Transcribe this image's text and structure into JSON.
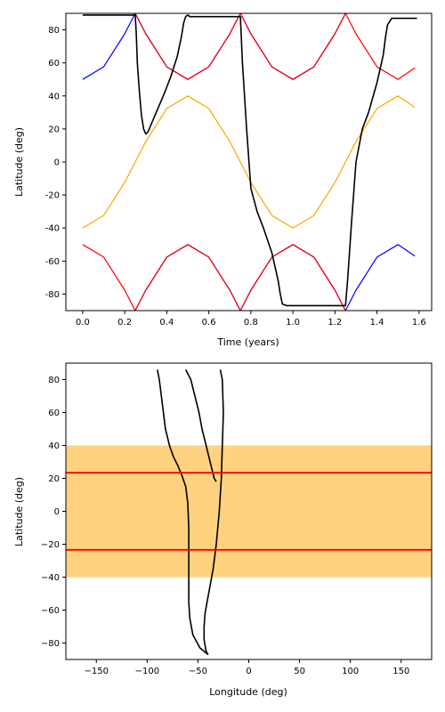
{
  "colors": {
    "lat_max": "#0000ff",
    "lat_min": "#ff0000",
    "subsolar": "#ffa500",
    "track": "#000000",
    "tropics": "#ff0000",
    "band": "#ffd27f"
  },
  "chart_data": [
    {
      "type": "line",
      "xlabel": "Time (years)",
      "ylabel": "Latitude (deg)",
      "xlim": [
        -0.08,
        1.66
      ],
      "ylim": [
        -90,
        90
      ],
      "xticks": [
        "0.0",
        "0.2",
        "0.4",
        "0.6",
        "0.8",
        "1.0",
        "1.2",
        "1.4",
        "1.6"
      ],
      "yticks": [
        "-80",
        "-60",
        "-40",
        "-20",
        "0",
        "20",
        "40",
        "60",
        "80"
      ],
      "grid": false,
      "legend": "none",
      "series": [
        {
          "color": "#ffa500",
          "x": [
            0,
            0.1,
            0.2,
            0.3,
            0.4,
            0.5,
            0.6,
            0.7,
            0.8,
            0.9,
            1.0,
            1.1,
            1.2,
            1.3,
            1.4,
            1.5,
            1.58
          ],
          "y": [
            -40,
            -32.4,
            -12.4,
            12.4,
            32.4,
            40,
            32.4,
            12.4,
            -12.4,
            -32.4,
            -40,
            -32.4,
            -12.4,
            12.4,
            32.4,
            40,
            33
          ]
        },
        {
          "color": "#0000ff",
          "x": [
            0,
            0.1,
            0.2,
            0.25,
            0.3,
            0.4,
            0.5,
            0.6,
            0.7,
            0.75,
            0.8,
            0.9,
            1.0,
            1.1,
            1.2,
            1.25
          ],
          "y": [
            50,
            57.6,
            77.6,
            90,
            77.6,
            57.6,
            50,
            57.6,
            77.6,
            90,
            77.6,
            57.6,
            50,
            57.6,
            77.6,
            90
          ]
        },
        {
          "color": "#0000ff",
          "x": [
            0.25,
            0.3,
            0.4,
            0.5,
            0.6,
            0.7,
            0.75,
            0.8,
            0.9,
            1.0,
            1.1,
            1.2,
            1.25,
            1.3,
            1.4,
            1.5,
            1.58
          ],
          "y": [
            -90,
            -77.6,
            -57.6,
            -50,
            -57.6,
            -77.6,
            -90,
            -77.6,
            -57.6,
            -50,
            -57.6,
            -77.6,
            -90,
            -77.6,
            -57.6,
            -50,
            -57
          ]
        },
        {
          "color": "#ff0000",
          "x": [
            0.25,
            0.3,
            0.4,
            0.5,
            0.6,
            0.7,
            0.75,
            0.8,
            0.9,
            1.0,
            1.1,
            1.2,
            1.25,
            1.3,
            1.4,
            1.5,
            1.58
          ],
          "y": [
            90,
            77.6,
            57.6,
            50,
            57.6,
            77.6,
            90,
            77.6,
            57.6,
            50,
            57.6,
            77.6,
            90,
            77.6,
            57.6,
            50,
            57
          ]
        },
        {
          "color": "#ff0000",
          "x": [
            0,
            0.1,
            0.2,
            0.25,
            0.3,
            0.4,
            0.5,
            0.6,
            0.7,
            0.75,
            0.8,
            0.9,
            1.0,
            1.1,
            1.2,
            1.25
          ],
          "y": [
            -50,
            -57.6,
            -77.6,
            -90,
            -77.6,
            -57.6,
            -50,
            -57.6,
            -77.6,
            -90,
            -77.6,
            -57.6,
            -50,
            -57.6,
            -77.6,
            -90
          ]
        },
        {
          "color": "#000000",
          "x": [
            0,
            0.25,
            0.255,
            0.26,
            0.27,
            0.28,
            0.29,
            0.3,
            0.31,
            0.33,
            0.36,
            0.39,
            0.42,
            0.45,
            0.47,
            0.48,
            0.49,
            0.5,
            0.51,
            0.75,
            0.76,
            0.78,
            0.8,
            0.83,
            0.86,
            0.9,
            0.93,
            0.94,
            0.95,
            0.97,
            1.0,
            1.25,
            1.26,
            1.28,
            1.3,
            1.33,
            1.36,
            1.4,
            1.43,
            1.44,
            1.45,
            1.47,
            1.5,
            1.59
          ],
          "y": [
            89,
            89,
            78,
            60,
            42,
            28,
            20,
            17,
            18,
            24,
            33,
            42,
            52,
            64,
            76,
            84,
            88,
            89,
            88,
            88,
            60,
            20,
            -16,
            -30,
            -40,
            -55,
            -72,
            -80,
            -86,
            -87,
            -87,
            -87,
            -72,
            -35,
            0,
            20,
            30,
            48,
            65,
            75,
            83,
            87,
            87,
            87
          ]
        }
      ]
    },
    {
      "type": "line",
      "xlabel": "Longitude (deg)",
      "ylabel": "Latitude (deg)",
      "xlim": [
        -180,
        180
      ],
      "ylim": [
        -90,
        90
      ],
      "xticks": [
        "−150",
        "−100",
        "−50",
        "0",
        "50",
        "100",
        "150"
      ],
      "yticks": [
        "−80",
        "−60",
        "−40",
        "−20",
        "0",
        "20",
        "40",
        "60",
        "80"
      ],
      "grid": false,
      "legend": "none",
      "band": {
        "from": -40,
        "to": 40
      },
      "hlines": [
        23.4,
        -23.4
      ],
      "series": [
        {
          "color": "#000000",
          "x": [
            -28,
            -26,
            -25,
            -26,
            -27,
            -29,
            -32,
            -35,
            -38,
            -41,
            -43,
            -44,
            -44,
            -42,
            -40
          ],
          "y": [
            86,
            80,
            60,
            40,
            20,
            0,
            -20,
            -35,
            -45,
            -55,
            -62,
            -70,
            -78,
            -85,
            -87
          ]
        },
        {
          "color": "#000000",
          "x": [
            -90,
            -88,
            -86,
            -84,
            -82,
            -78,
            -74,
            -70,
            -66,
            -62,
            -60,
            -59,
            -59,
            -59,
            -59,
            -58,
            -55,
            -48,
            -40
          ],
          "y": [
            86,
            80,
            70,
            60,
            50,
            40,
            33,
            28,
            22,
            15,
            5,
            -10,
            -25,
            -40,
            -55,
            -65,
            -75,
            -83,
            -87
          ]
        },
        {
          "color": "#000000",
          "x": [
            -62,
            -57,
            -53,
            -49,
            -46,
            -42,
            -38,
            -36,
            -34,
            -32
          ],
          "y": [
            86,
            80,
            70,
            60,
            50,
            40,
            30,
            25,
            20,
            18
          ]
        }
      ]
    }
  ]
}
